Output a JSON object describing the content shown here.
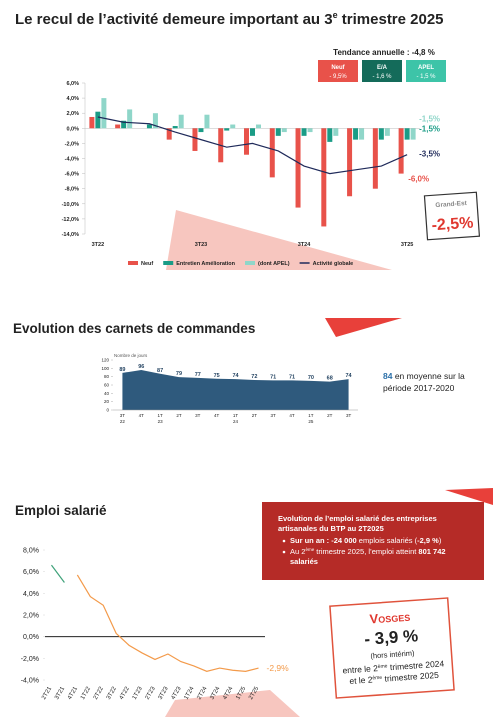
{
  "chart_data": [
    {
      "type": "bar",
      "title": [
        "Le recul de l’activité demeure important au 3",
        "e",
        " trimestre 2025"
      ],
      "categories": [
        "3T22",
        null,
        null,
        null,
        "3T23",
        null,
        null,
        null,
        "3T24",
        null,
        null,
        null,
        "3T25"
      ],
      "series": [
        {
          "name": "Neuf",
          "color": "#e8524a",
          "values": [
            1.5,
            0.5,
            0.0,
            -1.5,
            -3.0,
            -4.5,
            -3.5,
            -6.5,
            -10.5,
            -13.0,
            -9.0,
            -8.0,
            -6.0
          ],
          "end_label": "-6,0%"
        },
        {
          "name": "Entretien Amélioration",
          "color": "#1a9c86",
          "values": [
            2.2,
            1.0,
            0.5,
            0.3,
            -0.5,
            -0.3,
            -1.0,
            -1.0,
            -1.0,
            -1.8,
            -1.5,
            -1.5,
            -1.5
          ],
          "end_label": "-1,5%"
        },
        {
          "name": "(dont APEL)",
          "color": "#8fd6c9",
          "values": [
            4.0,
            2.5,
            2.0,
            1.8,
            1.8,
            0.5,
            0.5,
            -0.5,
            -0.5,
            -1.0,
            -1.5,
            -1.0,
            -1.5
          ],
          "end_label": "-1,5%"
        },
        {
          "name": "Activité globale",
          "color": "#1f2a5a",
          "type": "line",
          "values": [
            1.5,
            0.8,
            0.6,
            -0.5,
            -1.5,
            -2.5,
            -2.0,
            -3.0,
            -5.0,
            -6.0,
            -5.5,
            -5.0,
            -3.5
          ],
          "end_label": "-3,5%"
        }
      ],
      "ylim": [
        -14,
        6
      ],
      "yticks": [
        {
          "value": 6,
          "label": "6,0%"
        },
        {
          "value": 4,
          "label": "4,0%"
        },
        {
          "value": 2,
          "label": "2,0%"
        },
        {
          "value": 0,
          "label": "0,0%"
        },
        {
          "value": -2,
          "label": "-2,0%"
        },
        {
          "value": -4,
          "label": "-4,0%"
        },
        {
          "value": -6,
          "label": "-6,0%"
        },
        {
          "value": -8,
          "label": "-8,0%"
        },
        {
          "value": -10,
          "label": "-10,0%"
        },
        {
          "value": -12,
          "label": "-12,0%"
        },
        {
          "value": -14,
          "label": "-14,0%"
        }
      ],
      "legend": "bottom",
      "trend": {
        "title": "Tendance annuelle : -4,8 %",
        "cards": [
          {
            "name": "Neuf",
            "value": "- 9,5%",
            "color": "#e8524a"
          },
          {
            "name": "E/A",
            "value": "- 1,6 %",
            "color": "#146b5a"
          },
          {
            "name": "APEL",
            "value": "- 1,5 %",
            "color": "#3dc4a8"
          }
        ]
      },
      "region": {
        "name": "Grand-Est",
        "value": "-2,5%"
      }
    },
    {
      "type": "area",
      "title": "Evolution des carnets de commandes",
      "ylabel": "Nombre de jours",
      "categories": [
        [
          "3T",
          "22"
        ],
        [
          "4T"
        ],
        [
          "1T",
          "23"
        ],
        [
          "2T"
        ],
        [
          "3T"
        ],
        [
          "4T"
        ],
        [
          "1T",
          "24"
        ],
        [
          "2T"
        ],
        [
          "3T"
        ],
        [
          "4T"
        ],
        [
          "1T",
          "25"
        ],
        [
          "2T"
        ],
        [
          "3T"
        ]
      ],
      "values": [
        89,
        96,
        87,
        79,
        77,
        75,
        74,
        72,
        71,
        71,
        70,
        68,
        74
      ],
      "color": "#2f5a7d",
      "ylim": [
        0,
        120
      ],
      "yticks": [
        0,
        20,
        40,
        60,
        80,
        100,
        120
      ],
      "note": [
        "84",
        " en moyenne sur la",
        "période 2017-2020"
      ]
    },
    {
      "type": "line",
      "title": "Emploi salarié",
      "categories": [
        "2T21",
        "3T21",
        "4T21",
        "1T22",
        "2T22",
        "3T22",
        "4T22",
        "1T23",
        "2T23",
        "3T23",
        "4T23",
        "1T24",
        "2T24",
        "3T24",
        "4T24",
        "1T25",
        "2T25"
      ],
      "series": [
        {
          "color": "#3fa27a",
          "values": [
            6.6,
            5.0,
            null,
            null,
            null,
            null,
            null,
            null,
            null,
            null,
            null,
            null,
            null,
            null,
            null,
            null,
            null
          ]
        },
        {
          "color": "#f39a4a",
          "values": [
            null,
            null,
            5.7,
            3.7,
            2.9,
            0.3,
            -0.8,
            -1.5,
            -2.1,
            -1.6,
            -2.3,
            -2.7,
            -3.2,
            -2.9,
            -3.1,
            -3.2,
            -2.9
          ],
          "end_label": "-2,9%"
        }
      ],
      "ylim": [
        -4,
        8
      ],
      "yticks": [
        {
          "value": 8,
          "label": "8,0%"
        },
        {
          "value": 6,
          "label": "6,0%"
        },
        {
          "value": 4,
          "label": "4,0%"
        },
        {
          "value": 2,
          "label": "2,0%"
        },
        {
          "value": 0,
          "label": "0,0%"
        },
        {
          "value": -2,
          "label": "-2,0%"
        },
        {
          "value": -4,
          "label": "-4,0%"
        }
      ],
      "box": {
        "title": [
          "Evolution de l’emploi salarié des entreprises",
          "artisanales du BTP au 2T2025"
        ],
        "bullets": [
          [
            "Sur un an : -24 000",
            " emplois salariés (",
            "-2,9 %",
            ")"
          ],
          [
            "Au 2",
            "ème",
            " trimestre 2025, l’emploi atteint ",
            "801 742",
            "salariés"
          ]
        ]
      },
      "local": {
        "name": "Vosges",
        "value": "- 3,9 %",
        "note": "(hors intérim)",
        "period": [
          [
            "entre le 2",
            "ème",
            " trimestre 2024"
          ],
          [
            "et le 2",
            "ème",
            " trimestre 2025"
          ]
        ]
      }
    }
  ]
}
